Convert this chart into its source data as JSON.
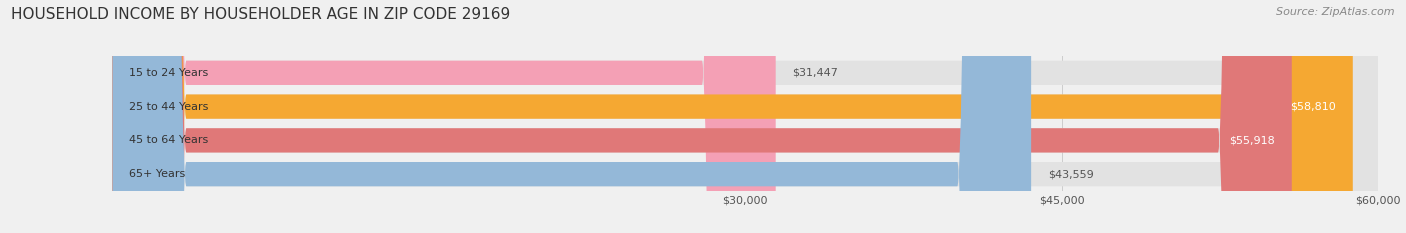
{
  "title": "HOUSEHOLD INCOME BY HOUSEHOLDER AGE IN ZIP CODE 29169",
  "source": "Source: ZipAtlas.com",
  "categories": [
    "15 to 24 Years",
    "25 to 44 Years",
    "45 to 64 Years",
    "65+ Years"
  ],
  "values": [
    31447,
    58810,
    55918,
    43559
  ],
  "bar_colors": [
    "#f4a0b5",
    "#f5a832",
    "#e07878",
    "#94b8d8"
  ],
  "label_inside": [
    false,
    true,
    true,
    false
  ],
  "xlim": [
    0,
    60000
  ],
  "xticks": [
    30000,
    45000,
    60000
  ],
  "xtick_labels": [
    "$30,000",
    "$45,000",
    "$60,000"
  ],
  "background_color": "#f0f0f0",
  "bar_bg_color": "#e2e2e2",
  "title_fontsize": 11,
  "source_fontsize": 8,
  "tick_fontsize": 8,
  "bar_label_fontsize": 8,
  "category_fontsize": 8
}
